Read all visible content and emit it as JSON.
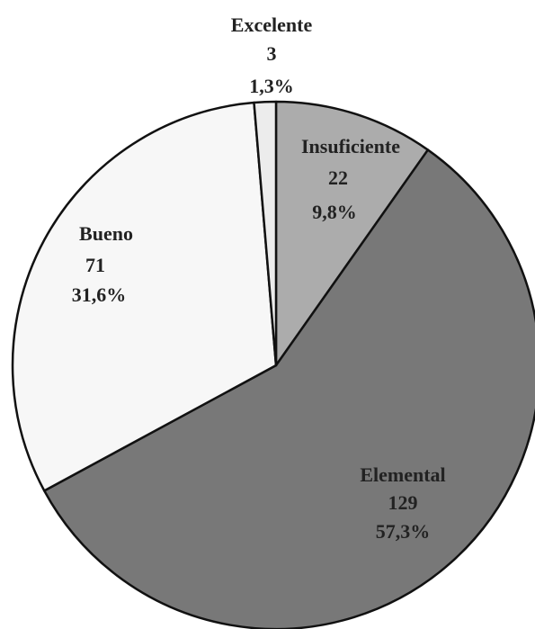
{
  "chart_data": {
    "type": "pie",
    "categories": [
      "Insuficiente",
      "Elemental",
      "Bueno",
      "Excelente"
    ],
    "values": [
      22,
      129,
      71,
      3
    ],
    "percentages": [
      9.8,
      57.3,
      31.6,
      1.3
    ],
    "percentage_labels": [
      "9,8%",
      "57,3%",
      "31,6%",
      "1,3%"
    ],
    "colors": [
      "#acacac",
      "#787878",
      "#f7f7f7",
      "#ececec"
    ]
  }
}
